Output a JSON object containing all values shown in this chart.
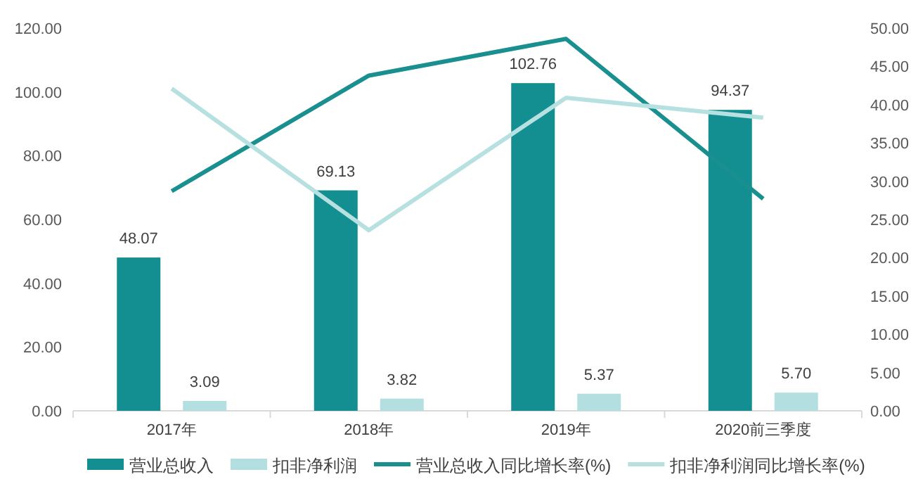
{
  "chart_data": {
    "type": "bar",
    "categories": [
      "2017年",
      "2018年",
      "2019年",
      "2020前三季度"
    ],
    "series": [
      {
        "name": "营业总收入",
        "color": "#148f91",
        "values": [
          48.07,
          69.13,
          102.76,
          94.37
        ],
        "value_labels": [
          "48.07",
          "69.13",
          "102.76",
          "94.37"
        ]
      },
      {
        "name": "扣非净利润",
        "color": "#b3dfe0",
        "values": [
          3.09,
          3.82,
          5.37,
          5.7
        ],
        "value_labels": [
          "3.09",
          "3.82",
          "5.37",
          "5.70"
        ]
      },
      {
        "name": "营业总收入同比增长率(%)",
        "type": "line",
        "axis": "y2",
        "color": "#1a8f8f",
        "values": [
          28.7,
          43.8,
          48.6,
          27.7
        ]
      },
      {
        "name": "扣非净利润同比增长率(%)",
        "type": "line",
        "axis": "y2",
        "color": "#b7e0e1",
        "values": [
          42.1,
          23.6,
          40.9,
          38.3
        ]
      }
    ],
    "ylim": [
      0,
      120
    ],
    "yticks": [
      {
        "value": 0,
        "label": "0.00"
      },
      {
        "value": 20,
        "label": "20.00"
      },
      {
        "value": 40,
        "label": "40.00"
      },
      {
        "value": 60,
        "label": "60.00"
      },
      {
        "value": 80,
        "label": "80.00"
      },
      {
        "value": 100,
        "label": "100.00"
      },
      {
        "value": 120,
        "label": "120.00"
      }
    ],
    "y2lim": [
      0,
      50
    ],
    "y2ticks": [
      {
        "value": 0,
        "label": "0.00"
      },
      {
        "value": 5,
        "label": "5.00"
      },
      {
        "value": 10,
        "label": "10.00"
      },
      {
        "value": 15,
        "label": "15.00"
      },
      {
        "value": 20,
        "label": "20.00"
      },
      {
        "value": 25,
        "label": "25.00"
      },
      {
        "value": 30,
        "label": "30.00"
      },
      {
        "value": 35,
        "label": "35.00"
      },
      {
        "value": 40,
        "label": "40.00"
      },
      {
        "value": 45,
        "label": "45.00"
      },
      {
        "value": 50,
        "label": "50.00"
      }
    ],
    "grid": false,
    "legend": "bottom",
    "marker": "none",
    "line_style": "solid"
  }
}
